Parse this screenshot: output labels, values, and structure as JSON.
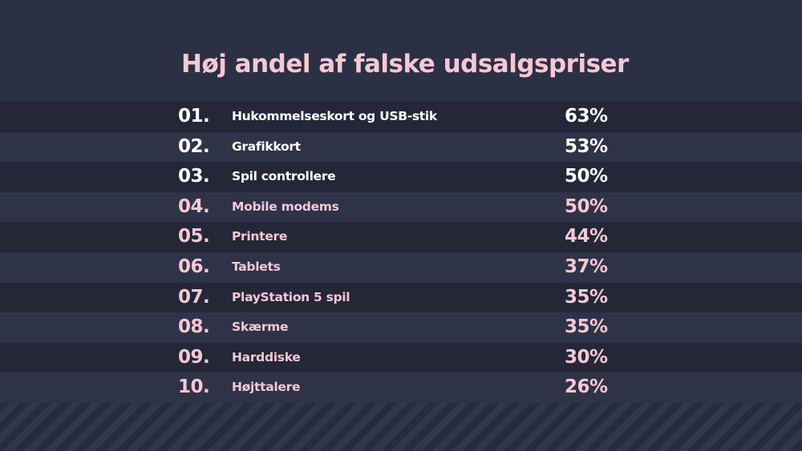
{
  "title": "Høj andel af falske udsalgspriser",
  "colors": {
    "background": "#2b3044",
    "row_dark": "#232738",
    "row_light": "#2e3347",
    "title": "#f6c8d3",
    "highlight_text": "#ffffff",
    "pink_text": "#f6c8d3"
  },
  "chart_data": {
    "type": "table",
    "title": "Høj andel af falske udsalgspriser",
    "columns": [
      "rank",
      "item",
      "share"
    ],
    "rows": [
      {
        "rank": "01.",
        "label": "Hukommelseskort og USB-stik",
        "value": "63%",
        "highlight": true
      },
      {
        "rank": "02.",
        "label": "Grafikkort",
        "value": "53%",
        "highlight": true
      },
      {
        "rank": "03.",
        "label": "Spil controllere",
        "value": "50%",
        "highlight": true
      },
      {
        "rank": "04.",
        "label": "Mobile modems",
        "value": "50%",
        "highlight": false
      },
      {
        "rank": "05.",
        "label": "Printere",
        "value": "44%",
        "highlight": false
      },
      {
        "rank": "06.",
        "label": "Tablets",
        "value": "37%",
        "highlight": false
      },
      {
        "rank": "07.",
        "label": "PlayStation 5 spil",
        "value": "35%",
        "highlight": false
      },
      {
        "rank": "08.",
        "label": "Skærme",
        "value": "35%",
        "highlight": false
      },
      {
        "rank": "09.",
        "label": "Harddiske",
        "value": "30%",
        "highlight": false
      },
      {
        "rank": "10.",
        "label": "Højttalere",
        "value": "26%",
        "highlight": false
      }
    ]
  }
}
